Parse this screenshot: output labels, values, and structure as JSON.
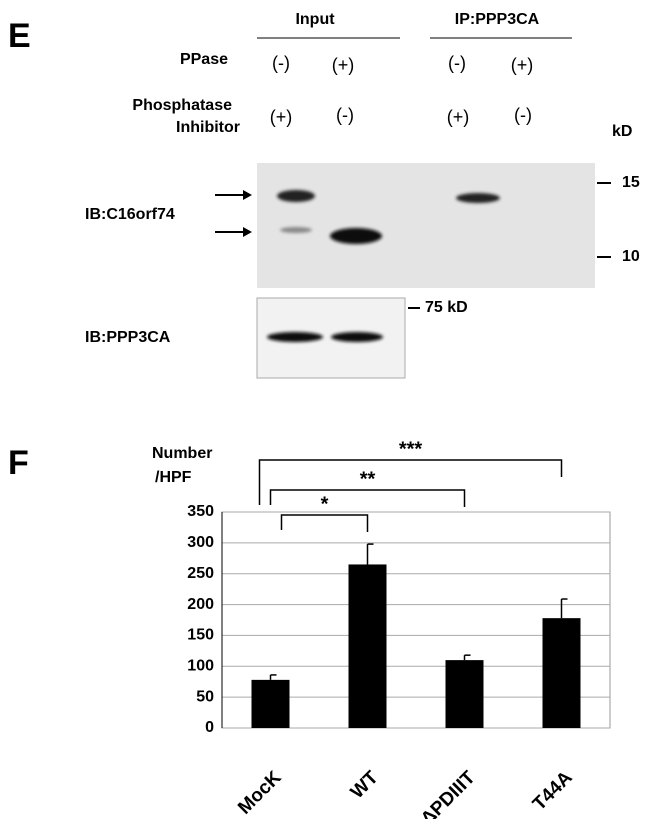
{
  "panel_e": {
    "label": "E",
    "groups": [
      "Input",
      "IP:PPP3CA"
    ],
    "ppase_label": "PPase",
    "ppase": [
      "(-)",
      "(+)",
      "(-)",
      "(+)"
    ],
    "inhibitor_label": [
      "Phosphatase",
      "Inhibitor"
    ],
    "inhibitor": [
      "(+)",
      "(-)",
      "(+)",
      "(-)"
    ],
    "kd_label": "kD",
    "blot1_label": "IB:C16orf74",
    "blot1_markers": [
      "15",
      "10"
    ],
    "blot2_marker": "75 kD",
    "blot2_label": "IB:PPP3CA"
  },
  "chart_data": {
    "type": "bar",
    "panel": "F",
    "ylabel": [
      "Number",
      "/HPF"
    ],
    "categories": [
      "MocK",
      "WT",
      "ΔPDIIIT",
      "T44A"
    ],
    "values": [
      78,
      265,
      110,
      178
    ],
    "errors": [
      8,
      33,
      8,
      31
    ],
    "color": "#000000",
    "ylim": [
      0,
      350
    ],
    "yticks": [
      0,
      50,
      100,
      150,
      200,
      250,
      300,
      350
    ],
    "grid": true,
    "annotations": [
      "*",
      "**",
      "***"
    ]
  }
}
